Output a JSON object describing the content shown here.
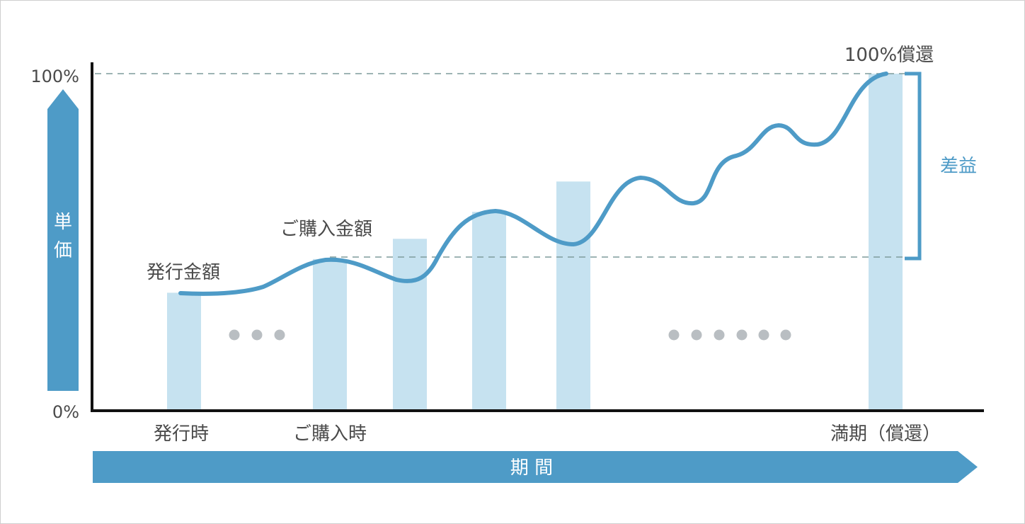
{
  "colors": {
    "accent": "#4e9bc7",
    "bar": "#c6e2f0",
    "dots": "#b9bec2",
    "dashed": "#7f9c9c",
    "axis": "#111111",
    "text": "#4a4a4a"
  },
  "y_axis": {
    "label": "単価",
    "tick_top": "100%",
    "tick_bottom": "0%"
  },
  "x_axis": {
    "label": "期 間",
    "tick_labels": [
      "発行時",
      "ご購入時",
      "満期（償還）"
    ]
  },
  "annotations": {
    "issue_amount": "発行金額",
    "purchase_amount": "ご購入金額",
    "redemption": "100%償還",
    "gain": "差益"
  },
  "chart_data": {
    "type": "bar",
    "y_range_percent": [
      0,
      100
    ],
    "bar_levels_percent": [
      35,
      45,
      51,
      59,
      68,
      100
    ],
    "gap_dots": [
      3,
      6
    ],
    "price_curve_reference_levels_percent": {
      "issue": 35,
      "purchase": 45,
      "maturity": 100
    }
  }
}
